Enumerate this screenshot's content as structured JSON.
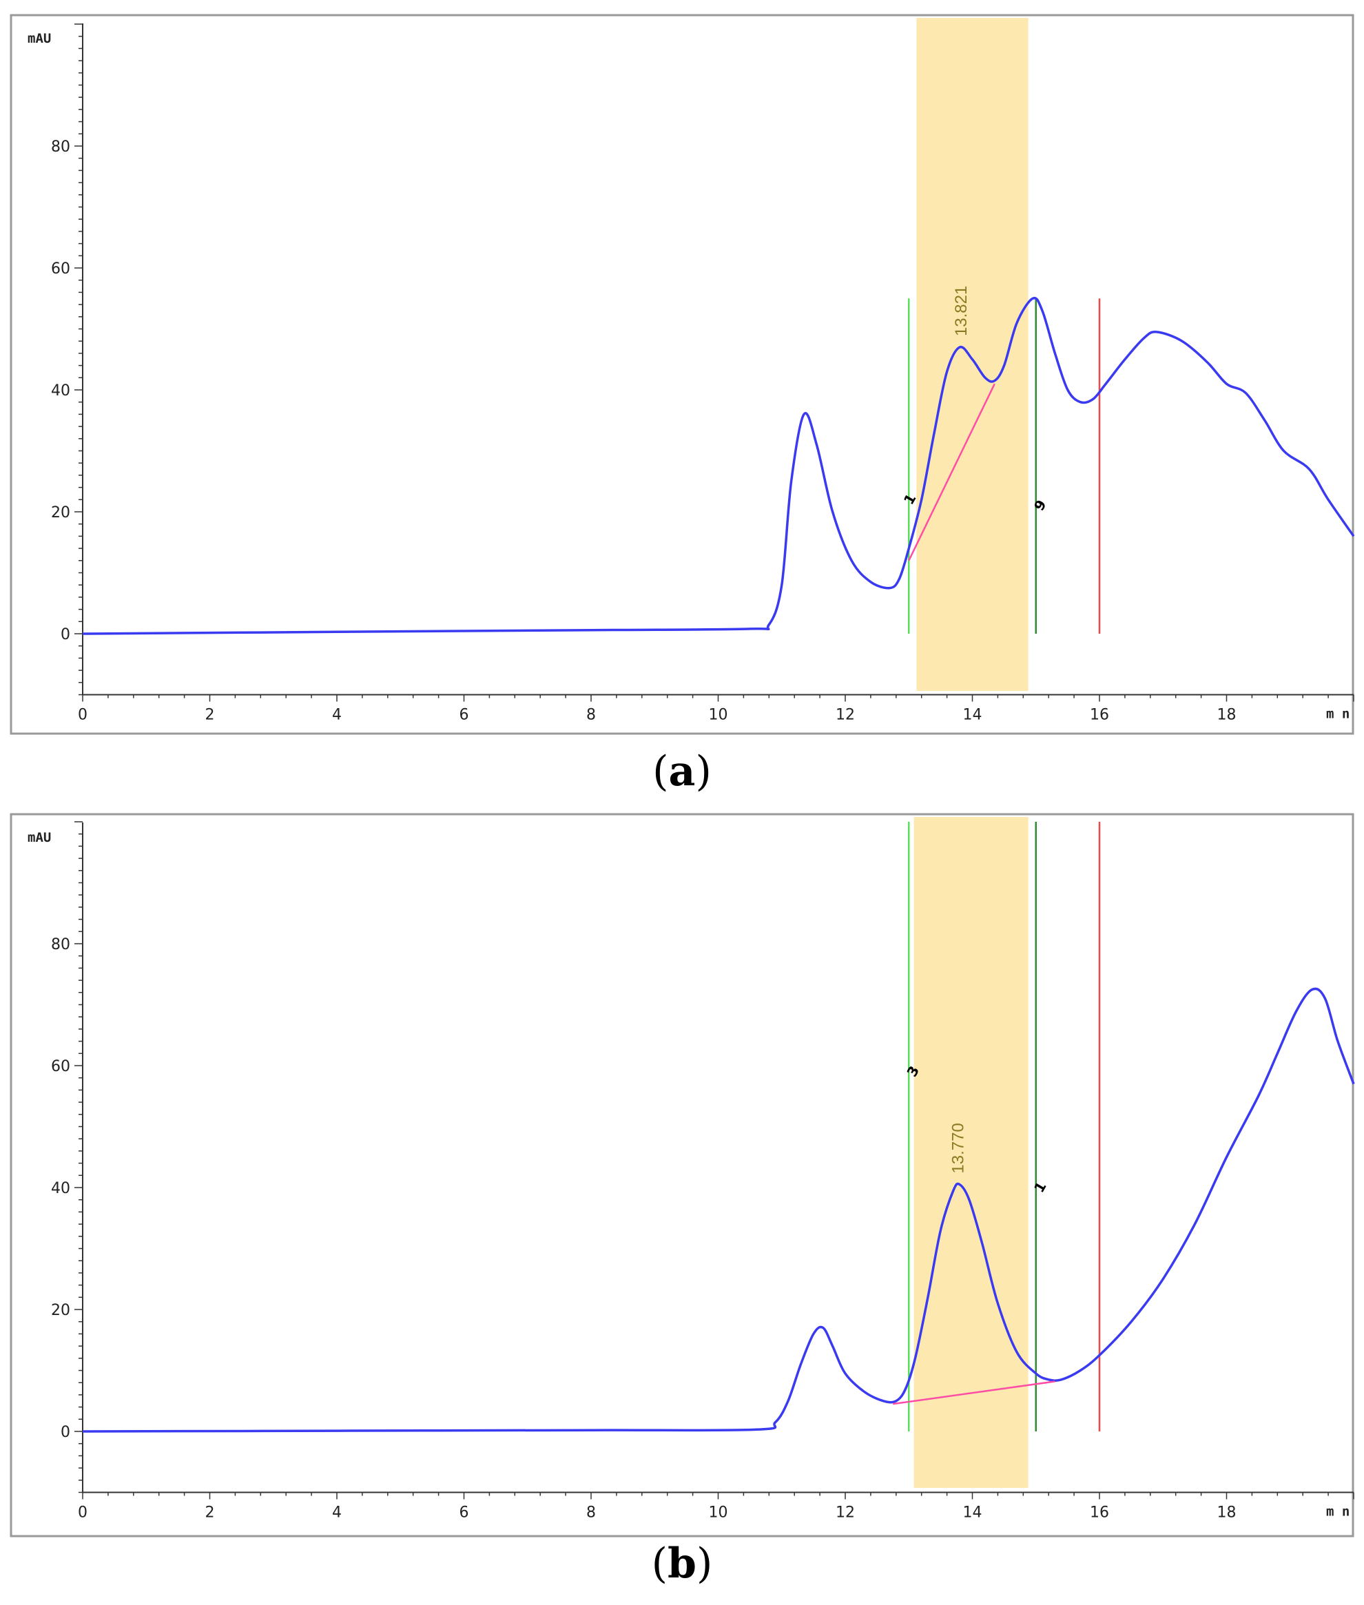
{
  "colors": {
    "trace": "#3a3af0",
    "baseline": "#ff4da6",
    "window_fill": "#fde9b0",
    "start_line": "#58e058",
    "end_line": "#2e8b2e",
    "stop_line": "#f04848",
    "peak_label": "#8a7a22"
  },
  "chart_data": [
    {
      "id": "a",
      "caption_label": "a",
      "type": "line",
      "yunit": "mAU",
      "xunit": "m n",
      "xlim": [
        0,
        20
      ],
      "ylim": [
        -10,
        100
      ],
      "xticks": [
        "0",
        "2",
        "4",
        "6",
        "8",
        "10",
        "12",
        "14",
        "16",
        "18"
      ],
      "yticks": [
        "0",
        "20",
        "40",
        "60",
        "80"
      ],
      "grid": false,
      "highlight_window": [
        13.12,
        14.88
      ],
      "event_lines": [
        {
          "name": "start",
          "x": 13.0,
          "y_range": [
            0,
            55
          ],
          "color": "#58e058"
        },
        {
          "name": "end",
          "x": 15.0,
          "y_range": [
            0,
            55
          ],
          "color": "#2e8b2e"
        },
        {
          "name": "stop",
          "x": 16.0,
          "y_range": [
            0,
            55
          ],
          "color": "#f04848"
        }
      ],
      "event_markers": [
        {
          "text": "1",
          "x": 13.0,
          "y": 21
        },
        {
          "text": "9",
          "x": 15.05,
          "y": 20
        }
      ],
      "peak": {
        "label": "13.821",
        "x": 13.82,
        "y": 47
      },
      "integration_baseline": [
        [
          13.0,
          12
        ],
        [
          14.35,
          41
        ]
      ],
      "series": [
        {
          "name": "",
          "points": [
            [
              0,
              0
            ],
            [
              4,
              0.3
            ],
            [
              8,
              0.6
            ],
            [
              10.5,
              0.8
            ],
            [
              10.8,
              1.5
            ],
            [
              11.0,
              8
            ],
            [
              11.15,
              25
            ],
            [
              11.35,
              36
            ],
            [
              11.55,
              31
            ],
            [
              11.8,
              20
            ],
            [
              12.1,
              12
            ],
            [
              12.4,
              8.5
            ],
            [
              12.7,
              7.5
            ],
            [
              12.85,
              9
            ],
            [
              13.0,
              14
            ],
            [
              13.2,
              22
            ],
            [
              13.4,
              33
            ],
            [
              13.6,
              43
            ],
            [
              13.8,
              47
            ],
            [
              14.0,
              45
            ],
            [
              14.2,
              42
            ],
            [
              14.35,
              41.5
            ],
            [
              14.5,
              44
            ],
            [
              14.7,
              51
            ],
            [
              14.95,
              55
            ],
            [
              15.1,
              53
            ],
            [
              15.3,
              46
            ],
            [
              15.5,
              40
            ],
            [
              15.7,
              38
            ],
            [
              15.9,
              38.5
            ],
            [
              16.1,
              41
            ],
            [
              16.4,
              45
            ],
            [
              16.7,
              48.5
            ],
            [
              16.9,
              49.5
            ],
            [
              17.3,
              48
            ],
            [
              17.7,
              44.5
            ],
            [
              18.0,
              41
            ],
            [
              18.3,
              39.5
            ],
            [
              18.6,
              35
            ],
            [
              18.9,
              30
            ],
            [
              19.3,
              27
            ],
            [
              19.6,
              22
            ],
            [
              20,
              16
            ]
          ]
        }
      ]
    },
    {
      "id": "b",
      "caption_label": "b",
      "type": "line",
      "yunit": "mAU",
      "xunit": "m n",
      "xlim": [
        0,
        20
      ],
      "ylim": [
        -10,
        100
      ],
      "xticks": [
        "0",
        "2",
        "4",
        "6",
        "8",
        "10",
        "12",
        "14",
        "16",
        "18"
      ],
      "yticks": [
        "0",
        "20",
        "40",
        "60",
        "80"
      ],
      "grid": false,
      "highlight_window": [
        13.08,
        14.88
      ],
      "event_lines": [
        {
          "name": "start",
          "x": 13.0,
          "y_range": [
            0,
            100
          ],
          "color": "#58e058"
        },
        {
          "name": "end",
          "x": 15.0,
          "y_range": [
            0,
            100
          ],
          "color": "#2e8b2e"
        },
        {
          "name": "stop",
          "x": 16.0,
          "y_range": [
            0,
            100
          ],
          "color": "#f04848"
        }
      ],
      "event_markers": [
        {
          "text": "3",
          "x": 13.05,
          "y": 58
        },
        {
          "text": "1",
          "x": 15.05,
          "y": 39
        }
      ],
      "peak": {
        "label": "13.770",
        "x": 13.77,
        "y": 40.5
      },
      "integration_baseline": [
        [
          12.75,
          4.5
        ],
        [
          15.3,
          8.2
        ]
      ],
      "series": [
        {
          "name": "",
          "points": [
            [
              0,
              0
            ],
            [
              4,
              0.1
            ],
            [
              8,
              0.2
            ],
            [
              10.6,
              0.3
            ],
            [
              10.9,
              1.5
            ],
            [
              11.1,
              5
            ],
            [
              11.3,
              11
            ],
            [
              11.5,
              16
            ],
            [
              11.65,
              17
            ],
            [
              11.8,
              14
            ],
            [
              12.0,
              9.5
            ],
            [
              12.3,
              6.5
            ],
            [
              12.6,
              5
            ],
            [
              12.8,
              5
            ],
            [
              12.95,
              7
            ],
            [
              13.1,
              12
            ],
            [
              13.3,
              22
            ],
            [
              13.5,
              33
            ],
            [
              13.7,
              39.5
            ],
            [
              13.8,
              40.5
            ],
            [
              13.95,
              38
            ],
            [
              14.15,
              31
            ],
            [
              14.4,
              21
            ],
            [
              14.7,
              13
            ],
            [
              15.0,
              9.5
            ],
            [
              15.2,
              8.5
            ],
            [
              15.4,
              8.5
            ],
            [
              15.7,
              10
            ],
            [
              16.0,
              12.5
            ],
            [
              16.5,
              18
            ],
            [
              17.0,
              25
            ],
            [
              17.5,
              34
            ],
            [
              18.0,
              45
            ],
            [
              18.5,
              55
            ],
            [
              18.8,
              62
            ],
            [
              19.1,
              69
            ],
            [
              19.35,
              72.5
            ],
            [
              19.55,
              71
            ],
            [
              19.75,
              64
            ],
            [
              20,
              57
            ]
          ]
        }
      ]
    }
  ]
}
